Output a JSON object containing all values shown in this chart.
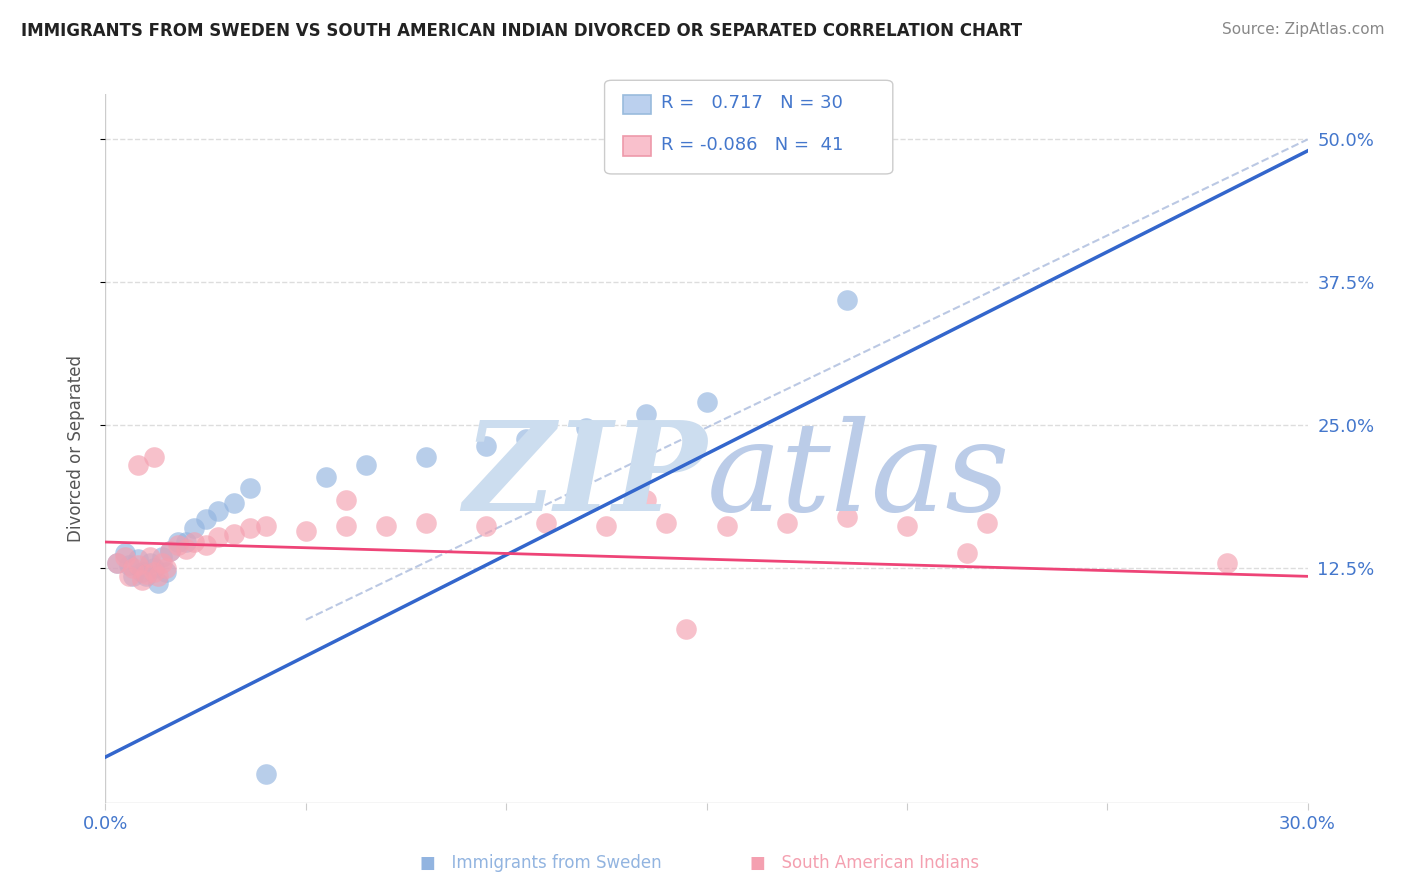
{
  "title": "IMMIGRANTS FROM SWEDEN VS SOUTH AMERICAN INDIAN DIVORCED OR SEPARATED CORRELATION CHART",
  "source": "Source: ZipAtlas.com",
  "ylabel": "Divorced or Separated",
  "xlim": [
    0.0,
    0.3
  ],
  "ylim": [
    -0.08,
    0.54
  ],
  "ytick_positions": [
    0.125,
    0.25,
    0.375,
    0.5
  ],
  "ytick_labels": [
    "12.5%",
    "25.0%",
    "37.5%",
    "50.0%"
  ],
  "xtick_positions": [
    0.0,
    0.05,
    0.1,
    0.15,
    0.2,
    0.25,
    0.3
  ],
  "xtick_labels": [
    "0.0%",
    "",
    "",
    "",
    "",
    "",
    "30.0%"
  ],
  "r_blue": "0.717",
  "n_blue": "30",
  "r_pink": "-0.086",
  "n_pink": "41",
  "blue_dot_color": "#92B4E0",
  "pink_dot_color": "#F4A0B0",
  "blue_line_color": "#3366CC",
  "pink_line_color": "#EE4477",
  "text_color": "#4477CC",
  "watermark_zip_color": "#CCDDEF",
  "watermark_atlas_color": "#BBCCE8",
  "grid_color": "#DDDDDD",
  "grid_style": "--",
  "bg_color": "#FFFFFF",
  "legend_edge_color": "#CCCCCC",
  "legend_blue_fill": "#BBD0EE",
  "legend_pink_fill": "#F9C0CC",
  "blue_trendline_x": [
    0.0,
    0.3
  ],
  "blue_trendline_y": [
    -0.04,
    0.49
  ],
  "pink_trendline_x": [
    0.0,
    0.3
  ],
  "pink_trendline_y": [
    0.148,
    0.118
  ],
  "ref_line_x": [
    0.05,
    0.3
  ],
  "ref_line_y": [
    0.08,
    0.5
  ],
  "blue_scatter_x": [
    0.003,
    0.005,
    0.006,
    0.007,
    0.008,
    0.009,
    0.01,
    0.011,
    0.012,
    0.013,
    0.014,
    0.015,
    0.016,
    0.018,
    0.02,
    0.022,
    0.025,
    0.028,
    0.032,
    0.036,
    0.055,
    0.065,
    0.08,
    0.095,
    0.105,
    0.12,
    0.135,
    0.15,
    0.185,
    0.04
  ],
  "blue_scatter_y": [
    0.13,
    0.138,
    0.128,
    0.118,
    0.133,
    0.122,
    0.118,
    0.13,
    0.125,
    0.112,
    0.135,
    0.122,
    0.14,
    0.148,
    0.148,
    0.16,
    0.168,
    0.175,
    0.182,
    0.195,
    0.205,
    0.215,
    0.222,
    0.232,
    0.238,
    0.248,
    0.26,
    0.27,
    0.36,
    -0.055
  ],
  "pink_scatter_x": [
    0.003,
    0.005,
    0.006,
    0.007,
    0.008,
    0.009,
    0.01,
    0.011,
    0.012,
    0.013,
    0.014,
    0.015,
    0.016,
    0.018,
    0.02,
    0.022,
    0.025,
    0.028,
    0.032,
    0.036,
    0.04,
    0.05,
    0.06,
    0.07,
    0.08,
    0.095,
    0.11,
    0.125,
    0.14,
    0.155,
    0.17,
    0.185,
    0.2,
    0.22,
    0.008,
    0.012,
    0.06,
    0.135,
    0.215,
    0.28,
    0.145
  ],
  "pink_scatter_y": [
    0.13,
    0.135,
    0.118,
    0.125,
    0.128,
    0.115,
    0.12,
    0.135,
    0.122,
    0.118,
    0.13,
    0.125,
    0.14,
    0.145,
    0.142,
    0.148,
    0.145,
    0.152,
    0.155,
    0.16,
    0.162,
    0.158,
    0.162,
    0.162,
    0.165,
    0.162,
    0.165,
    0.162,
    0.165,
    0.162,
    0.165,
    0.17,
    0.162,
    0.165,
    0.215,
    0.222,
    0.185,
    0.185,
    0.138,
    0.13,
    0.072
  ]
}
